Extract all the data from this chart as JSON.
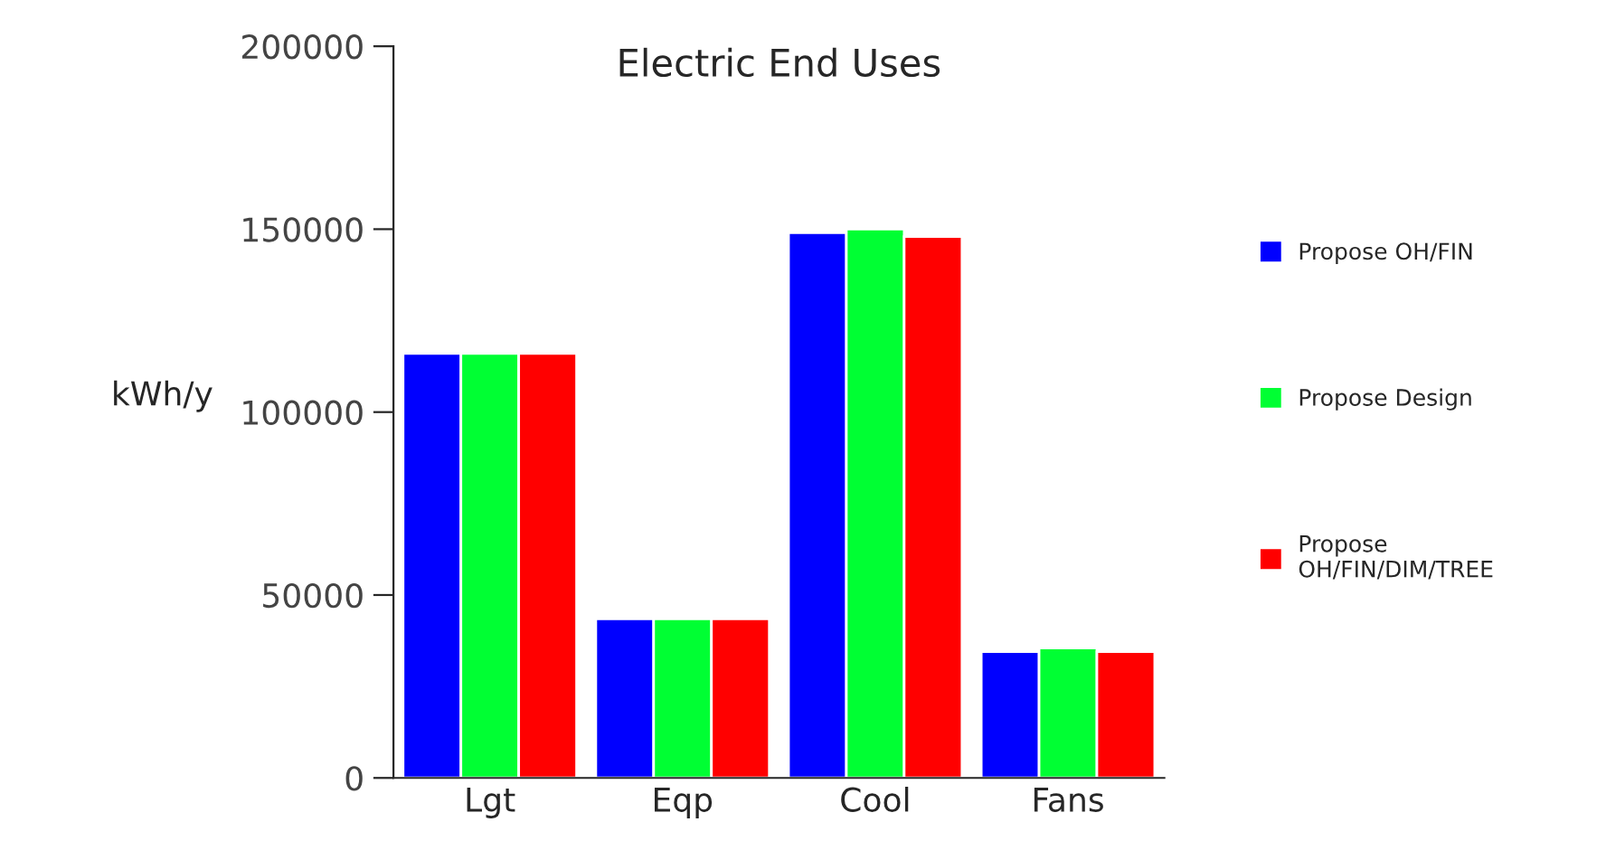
{
  "chart_data": {
    "type": "bar",
    "title": "Electric End Uses",
    "ylabel": "kWh/y",
    "categories": [
      "Lgt",
      "Eqp",
      "Cool",
      "Fans"
    ],
    "series": [
      {
        "name": "Propose OH/FIN",
        "color": "#0000ff",
        "values": [
          116000,
          43500,
          149000,
          34500
        ]
      },
      {
        "name": "Propose Design",
        "color": "#00ff33",
        "values": [
          116000,
          43500,
          150000,
          35500
        ]
      },
      {
        "name": "Propose\nOH/FIN/DIM/TREE",
        "color": "#ff0000",
        "values": [
          116000,
          43500,
          148000,
          34500
        ]
      }
    ],
    "ylim": [
      0,
      200000
    ],
    "yticks": [
      0,
      50000,
      100000,
      150000,
      200000
    ],
    "grid": false,
    "legend": "right"
  }
}
